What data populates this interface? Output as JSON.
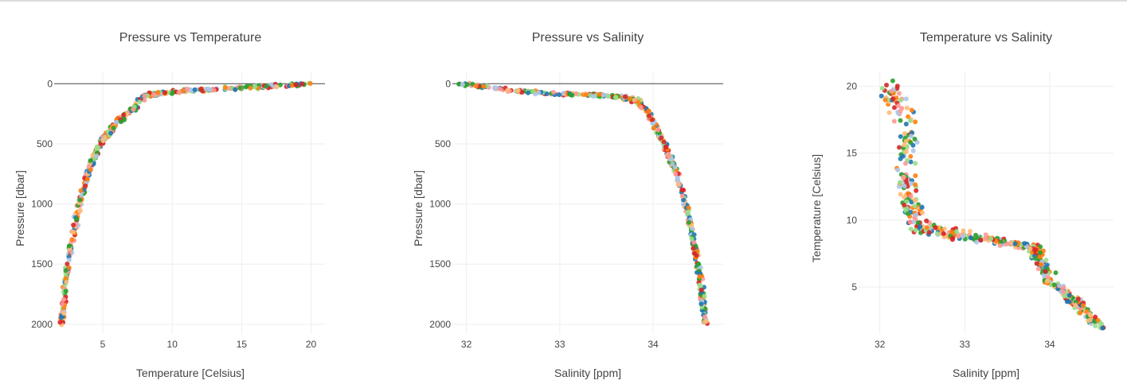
{
  "chart_data": [
    {
      "type": "scatter",
      "title": "Pressure vs Temperature",
      "xlabel": "Temperature [Celsius]",
      "ylabel": "Pressure [dbar]",
      "xlim": [
        1.5,
        21
      ],
      "ylim": [
        2080,
        -35
      ],
      "y_reversed": true,
      "zeroline_y": 0,
      "xticks": [
        5,
        10,
        15,
        20
      ],
      "yticks": [
        0,
        500,
        1000,
        1500,
        2000
      ],
      "grid": true,
      "profile": [
        [
          20,
          0
        ],
        [
          17,
          20
        ],
        [
          14,
          40
        ],
        [
          11,
          60
        ],
        [
          9,
          80
        ],
        [
          8,
          100
        ],
        [
          7.3,
          200
        ],
        [
          6.2,
          300
        ],
        [
          5.5,
          400
        ],
        [
          4.8,
          500
        ],
        [
          4.2,
          650
        ],
        [
          3.8,
          800
        ],
        [
          3.3,
          1000
        ],
        [
          2.9,
          1250
        ],
        [
          2.5,
          1500
        ],
        [
          2.2,
          1800
        ],
        [
          2.0,
          2000
        ]
      ]
    },
    {
      "type": "scatter",
      "title": "Pressure vs Salinity",
      "xlabel": "Salinity [ppm]",
      "ylabel": "Pressure [dbar]",
      "xlim": [
        31.85,
        34.75
      ],
      "ylim": [
        2080,
        -35
      ],
      "y_reversed": true,
      "zeroline_y": 0,
      "xticks": [
        32,
        33,
        34
      ],
      "yticks": [
        0,
        500,
        1000,
        1500,
        2000
      ],
      "grid": true,
      "profile": [
        [
          31.95,
          0
        ],
        [
          32.4,
          50
        ],
        [
          32.9,
          80
        ],
        [
          33.4,
          95
        ],
        [
          33.7,
          110
        ],
        [
          33.85,
          150
        ],
        [
          33.95,
          250
        ],
        [
          34.05,
          400
        ],
        [
          34.15,
          550
        ],
        [
          34.25,
          750
        ],
        [
          34.35,
          1000
        ],
        [
          34.42,
          1250
        ],
        [
          34.48,
          1500
        ],
        [
          34.53,
          1800
        ],
        [
          34.57,
          2000
        ]
      ]
    },
    {
      "type": "scatter",
      "title": "Temperature vs Salinity",
      "xlabel": "Salinity [ppm]",
      "ylabel": "Temperature [Celsius]",
      "xlim": [
        31.75,
        34.75
      ],
      "ylim": [
        1.5,
        20.5
      ],
      "xticks": [
        32,
        33,
        34
      ],
      "yticks": [
        5,
        10,
        15,
        20
      ],
      "grid": true,
      "profile": [
        [
          32.1,
          20
        ],
        [
          32.3,
          17
        ],
        [
          32.3,
          13.5
        ],
        [
          32.35,
          11
        ],
        [
          32.5,
          9.5
        ],
        [
          33.0,
          8.8
        ],
        [
          33.5,
          8.3
        ],
        [
          33.8,
          8.0
        ],
        [
          33.9,
          7.0
        ],
        [
          34.0,
          5.5
        ],
        [
          34.2,
          4.5
        ],
        [
          34.4,
          3.3
        ],
        [
          34.6,
          2.0
        ]
      ]
    }
  ],
  "series_colors": [
    "#1f77b4",
    "#ff7f0e",
    "#2ca02c",
    "#d62728",
    "#aec7e8",
    "#ffbb78",
    "#98df8a",
    "#ff9896"
  ]
}
